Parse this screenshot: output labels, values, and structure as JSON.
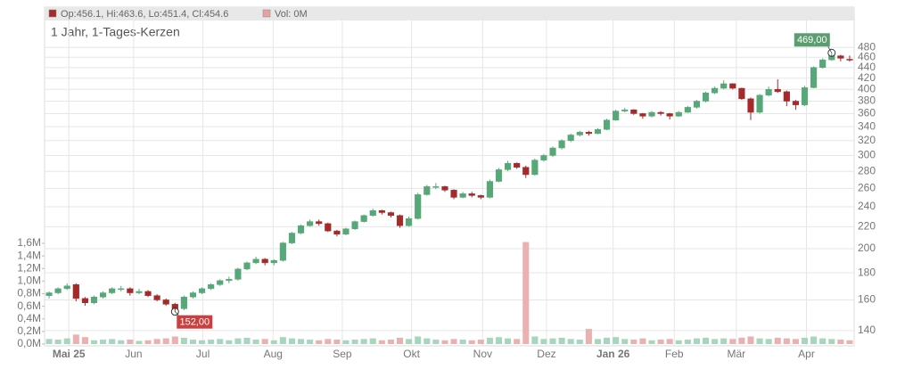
{
  "chart_data": {
    "type": "candlestick",
    "title": "1 Jahr, 1-Tages-Kerzen",
    "legend": [
      "Op:456.1, Hi:463.6, Lo:451.4, Cl:454.6",
      "Vol: 0M"
    ],
    "legend_colors": [
      "#a52a2a",
      "#e8a0a0"
    ],
    "up_color": "#56a878",
    "down_color": "#a52a2a",
    "up_volume_color": "#a8d5bd",
    "down_volume_color": "#ebb0b0",
    "log_scale": true,
    "grid": true,
    "ylim": [
      131,
      542
    ],
    "yticks": [
      140,
      160,
      180,
      200,
      220,
      240,
      260,
      280,
      300,
      320,
      340,
      360,
      380,
      400,
      420,
      440,
      460,
      480
    ],
    "volume_ylim": [
      0,
      1.6
    ],
    "volume_ticks": [
      {
        "value": 0,
        "label": "0,0M"
      },
      {
        "value": 0.2,
        "label": "0,2M"
      },
      {
        "value": 0.4,
        "label": "0,4M"
      },
      {
        "value": 0.6,
        "label": "0,6M"
      },
      {
        "value": 0.8,
        "label": "0,8M"
      },
      {
        "value": 1.0,
        "label": "1,0M"
      },
      {
        "value": 1.2,
        "label": "1,2M"
      },
      {
        "value": 1.4,
        "label": "1,4M"
      },
      {
        "value": 1.6,
        "label": "1,6M"
      }
    ],
    "xlim": [
      -0.5,
      89.5
    ],
    "xticks": [
      {
        "value": 2.2,
        "label": "Mai 25",
        "bold": true
      },
      {
        "value": 9.4,
        "label": "Jun"
      },
      {
        "value": 17.1,
        "label": "Jul"
      },
      {
        "value": 24.9,
        "label": "Aug"
      },
      {
        "value": 32.6,
        "label": "Sep"
      },
      {
        "value": 40.3,
        "label": "Okt"
      },
      {
        "value": 48.2,
        "label": "Nov"
      },
      {
        "value": 55.3,
        "label": "Dez"
      },
      {
        "value": 62.7,
        "label": "Jan 26",
        "bold": true
      },
      {
        "value": 69.5,
        "label": "Feb"
      },
      {
        "value": 76.4,
        "label": "Mär"
      },
      {
        "value": 84.2,
        "label": "Apr"
      }
    ],
    "annotations": [
      {
        "text": "469,00",
        "value": 469,
        "color": "#5a9e6f"
      },
      {
        "text": "152,00",
        "value": 152,
        "color": "#c94040"
      }
    ],
    "candles": [
      [
        163,
        166,
        161,
        165
      ],
      [
        165,
        169,
        164,
        168
      ],
      [
        168,
        172,
        167,
        170
      ],
      [
        171,
        172,
        159,
        161
      ],
      [
        161,
        162,
        156,
        158
      ],
      [
        158,
        163,
        157,
        162
      ],
      [
        162,
        166,
        161,
        165
      ],
      [
        165,
        169,
        164,
        168
      ],
      [
        168,
        170,
        166,
        168
      ],
      [
        168,
        169,
        163,
        165
      ],
      [
        165,
        168,
        164,
        166
      ],
      [
        166,
        167,
        162,
        163
      ],
      [
        163,
        164,
        159,
        160
      ],
      [
        160,
        161,
        156,
        157
      ],
      [
        157,
        158,
        152,
        154
      ],
      [
        154,
        163,
        153,
        162
      ],
      [
        162,
        166,
        161,
        165
      ],
      [
        165,
        169,
        164,
        168
      ],
      [
        168,
        172,
        167,
        171
      ],
      [
        171,
        175,
        170,
        174
      ],
      [
        174,
        177,
        172,
        175
      ],
      [
        175,
        184,
        174,
        183
      ],
      [
        183,
        189,
        182,
        188
      ],
      [
        188,
        193,
        187,
        191
      ],
      [
        191,
        192,
        186,
        188
      ],
      [
        188,
        191,
        186,
        190
      ],
      [
        190,
        206,
        189,
        205
      ],
      [
        205,
        215,
        204,
        214
      ],
      [
        214,
        222,
        213,
        221
      ],
      [
        221,
        227,
        220,
        225
      ],
      [
        225,
        227,
        221,
        223
      ],
      [
        223,
        224,
        215,
        216
      ],
      [
        216,
        217,
        211,
        213
      ],
      [
        213,
        219,
        212,
        218
      ],
      [
        218,
        226,
        217,
        225
      ],
      [
        225,
        232,
        224,
        231
      ],
      [
        231,
        238,
        230,
        236
      ],
      [
        236,
        237,
        232,
        234
      ],
      [
        234,
        235,
        229,
        231
      ],
      [
        231,
        232,
        219,
        221
      ],
      [
        221,
        230,
        220,
        228
      ],
      [
        228,
        255,
        227,
        253
      ],
      [
        253,
        264,
        252,
        262
      ],
      [
        262,
        266,
        259,
        262
      ],
      [
        262,
        263,
        256,
        258
      ],
      [
        258,
        259,
        248,
        250
      ],
      [
        250,
        256,
        249,
        254
      ],
      [
        254,
        256,
        250,
        252
      ],
      [
        252,
        253,
        248,
        250
      ],
      [
        250,
        270,
        249,
        268
      ],
      [
        268,
        284,
        267,
        282
      ],
      [
        282,
        293,
        280,
        290
      ],
      [
        290,
        291,
        283,
        285
      ],
      [
        285,
        287,
        272,
        276
      ],
      [
        276,
        296,
        275,
        294
      ],
      [
        294,
        302,
        292,
        300
      ],
      [
        300,
        312,
        298,
        310
      ],
      [
        310,
        322,
        308,
        320
      ],
      [
        320,
        330,
        318,
        328
      ],
      [
        328,
        334,
        326,
        332
      ],
      [
        332,
        334,
        327,
        330
      ],
      [
        330,
        338,
        329,
        336
      ],
      [
        336,
        352,
        335,
        350
      ],
      [
        350,
        366,
        349,
        364
      ],
      [
        364,
        369,
        362,
        366
      ],
      [
        366,
        367,
        358,
        360
      ],
      [
        360,
        361,
        352,
        356
      ],
      [
        356,
        364,
        354,
        362
      ],
      [
        362,
        364,
        357,
        360
      ],
      [
        360,
        361,
        351,
        356
      ],
      [
        356,
        364,
        355,
        362
      ],
      [
        362,
        372,
        361,
        370
      ],
      [
        370,
        382,
        368,
        380
      ],
      [
        380,
        396,
        378,
        394
      ],
      [
        394,
        405,
        392,
        402
      ],
      [
        402,
        416,
        400,
        410
      ],
      [
        410,
        411,
        400,
        402
      ],
      [
        402,
        403,
        382,
        384
      ],
      [
        384,
        386,
        350,
        362
      ],
      [
        362,
        392,
        360,
        390
      ],
      [
        390,
        405,
        388,
        400
      ],
      [
        400,
        418,
        394,
        396
      ],
      [
        396,
        398,
        372,
        380
      ],
      [
        380,
        382,
        366,
        374
      ],
      [
        374,
        406,
        372,
        403
      ],
      [
        403,
        442,
        402,
        440
      ],
      [
        440,
        458,
        438,
        455
      ],
      [
        455,
        469,
        453,
        463
      ],
      [
        463,
        465,
        452,
        458
      ],
      [
        456.1,
        463.6,
        451.4,
        454.6
      ]
    ],
    "volumes": [
      0.08,
      0.07,
      0.09,
      0.15,
      0.11,
      0.06,
      0.07,
      0.08,
      0.06,
      0.07,
      0.05,
      0.06,
      0.08,
      0.09,
      0.12,
      0.1,
      0.07,
      0.06,
      0.07,
      0.08,
      0.06,
      0.09,
      0.1,
      0.07,
      0.08,
      0.06,
      0.11,
      0.09,
      0.08,
      0.07,
      0.06,
      0.08,
      0.07,
      0.06,
      0.07,
      0.08,
      0.09,
      0.06,
      0.07,
      0.1,
      0.08,
      0.12,
      0.09,
      0.07,
      0.06,
      0.08,
      0.07,
      0.06,
      0.07,
      0.1,
      0.11,
      0.09,
      0.08,
      1.62,
      0.12,
      0.08,
      0.09,
      0.1,
      0.08,
      0.07,
      0.24,
      0.08,
      0.1,
      0.11,
      0.08,
      0.07,
      0.09,
      0.06,
      0.07,
      0.08,
      0.06,
      0.07,
      0.09,
      0.1,
      0.08,
      0.09,
      0.08,
      0.1,
      0.12,
      0.09,
      0.08,
      0.1,
      0.09,
      0.08,
      0.1,
      0.12,
      0.09,
      0.08,
      0.07,
      0.06
    ]
  }
}
